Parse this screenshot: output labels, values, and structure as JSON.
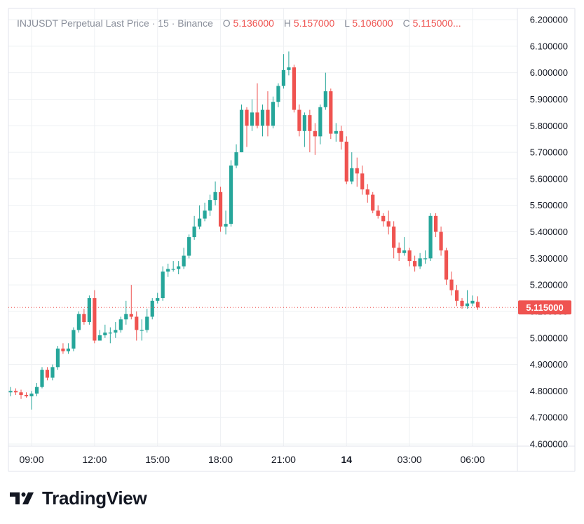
{
  "legend": {
    "title": "INJUSDT Perpetual Last Price · 15 · Binance",
    "o_label": "O",
    "o_value": "5.136000",
    "h_label": "H",
    "h_value": "5.157000",
    "l_label": "L",
    "l_value": "5.106000",
    "c_label": "C",
    "c_value": "5.115000..."
  },
  "last_price_label": "5.115000",
  "brand": {
    "name": "TradingView"
  },
  "colors": {
    "up": "#26a69a",
    "down": "#ef5350",
    "grid": "#eef0f3",
    "text": "#131722",
    "legend_gray": "#8a8f9b"
  },
  "chart_data": {
    "type": "candlestick",
    "title": "INJUSDT Perpetual Last Price · 15 · Binance",
    "ylim": [
      4.6,
      6.2
    ],
    "y_ticks": [
      "6.200000",
      "6.100000",
      "6.000000",
      "5.900000",
      "5.800000",
      "5.700000",
      "5.600000",
      "5.500000",
      "5.400000",
      "5.300000",
      "5.200000",
      "5.100000",
      "5.000000",
      "4.900000",
      "4.800000",
      "4.700000",
      "4.600000"
    ],
    "x_ticks": [
      {
        "label": "09:00",
        "hour": 9
      },
      {
        "label": "12:00",
        "hour": 12
      },
      {
        "label": "15:00",
        "hour": 15
      },
      {
        "label": "18:00",
        "hour": 18
      },
      {
        "label": "21:00",
        "hour": 21
      },
      {
        "label": "14",
        "hour": 24,
        "bold": true
      },
      {
        "label": "03:00",
        "hour": 27
      },
      {
        "label": "06:00",
        "hour": 30
      }
    ],
    "last_price": 5.115,
    "candles": [
      [
        8.0,
        4.795,
        4.8,
        4.815,
        4.78
      ],
      [
        8.25,
        4.8,
        4.795,
        4.81,
        4.785
      ],
      [
        8.5,
        4.795,
        4.785,
        4.805,
        4.77
      ],
      [
        8.75,
        4.785,
        4.78,
        4.795,
        4.775
      ],
      [
        9.0,
        4.78,
        4.79,
        4.8,
        4.73
      ],
      [
        9.25,
        4.79,
        4.815,
        4.83,
        4.78
      ],
      [
        9.5,
        4.815,
        4.88,
        4.89,
        4.81
      ],
      [
        9.75,
        4.88,
        4.85,
        4.89,
        4.84
      ],
      [
        10.0,
        4.85,
        4.89,
        4.9,
        4.84
      ],
      [
        10.25,
        4.89,
        4.96,
        4.97,
        4.88
      ],
      [
        10.5,
        4.96,
        4.95,
        4.98,
        4.94
      ],
      [
        10.75,
        4.95,
        4.96,
        4.98,
        4.94
      ],
      [
        11.0,
        4.96,
        5.03,
        5.04,
        4.95
      ],
      [
        11.25,
        5.03,
        5.09,
        5.1,
        5.02
      ],
      [
        11.5,
        5.09,
        5.06,
        5.11,
        5.05
      ],
      [
        11.75,
        5.06,
        5.15,
        5.16,
        5.05
      ],
      [
        12.0,
        5.15,
        4.99,
        5.18,
        4.98
      ],
      [
        12.25,
        4.99,
        5.01,
        5.03,
        4.99
      ],
      [
        12.5,
        5.01,
        5.02,
        5.05,
        5.0
      ],
      [
        12.75,
        5.02,
        5.02,
        5.04,
        4.98
      ],
      [
        13.0,
        5.02,
        5.03,
        5.06,
        5.0
      ],
      [
        13.25,
        5.03,
        5.07,
        5.08,
        5.02
      ],
      [
        13.5,
        5.07,
        5.09,
        5.14,
        5.05
      ],
      [
        13.75,
        5.09,
        5.08,
        5.2,
        5.07
      ],
      [
        14.0,
        5.08,
        5.03,
        5.1,
        4.99
      ],
      [
        14.25,
        5.03,
        5.03,
        5.07,
        4.99
      ],
      [
        14.5,
        5.03,
        5.08,
        5.11,
        5.02
      ],
      [
        14.75,
        5.08,
        5.14,
        5.15,
        5.07
      ],
      [
        15.0,
        5.14,
        5.15,
        5.17,
        5.13
      ],
      [
        15.25,
        5.15,
        5.25,
        5.27,
        5.14
      ],
      [
        15.5,
        5.25,
        5.26,
        5.28,
        5.23
      ],
      [
        15.75,
        5.26,
        5.26,
        5.29,
        5.25
      ],
      [
        16.0,
        5.26,
        5.27,
        5.29,
        5.24
      ],
      [
        16.25,
        5.27,
        5.31,
        5.34,
        5.26
      ],
      [
        16.5,
        5.31,
        5.38,
        5.39,
        5.3
      ],
      [
        16.75,
        5.38,
        5.42,
        5.46,
        5.37
      ],
      [
        17.0,
        5.42,
        5.45,
        5.5,
        5.41
      ],
      [
        17.25,
        5.45,
        5.48,
        5.51,
        5.44
      ],
      [
        17.5,
        5.48,
        5.52,
        5.54,
        5.46
      ],
      [
        17.75,
        5.52,
        5.55,
        5.59,
        5.5
      ],
      [
        18.0,
        5.55,
        5.42,
        5.57,
        5.4
      ],
      [
        18.25,
        5.42,
        5.43,
        5.48,
        5.39
      ],
      [
        18.5,
        5.43,
        5.65,
        5.67,
        5.42
      ],
      [
        18.75,
        5.65,
        5.7,
        5.73,
        5.64
      ],
      [
        19.0,
        5.7,
        5.86,
        5.88,
        5.7
      ],
      [
        19.25,
        5.86,
        5.8,
        5.87,
        5.72
      ],
      [
        19.5,
        5.8,
        5.85,
        5.9,
        5.78
      ],
      [
        19.75,
        5.85,
        5.8,
        5.96,
        5.79
      ],
      [
        20.0,
        5.8,
        5.86,
        5.88,
        5.76
      ],
      [
        20.25,
        5.86,
        5.8,
        5.93,
        5.76
      ],
      [
        20.5,
        5.8,
        5.89,
        5.91,
        5.79
      ],
      [
        20.75,
        5.89,
        5.95,
        5.96,
        5.87
      ],
      [
        21.0,
        5.95,
        6.01,
        6.07,
        5.94
      ],
      [
        21.25,
        6.01,
        6.02,
        6.08,
        5.99
      ],
      [
        21.5,
        6.02,
        5.86,
        6.03,
        5.85
      ],
      [
        21.75,
        5.86,
        5.78,
        5.88,
        5.76
      ],
      [
        22.0,
        5.78,
        5.84,
        5.85,
        5.72
      ],
      [
        22.25,
        5.84,
        5.78,
        5.86,
        5.7
      ],
      [
        22.5,
        5.78,
        5.76,
        5.81,
        5.69
      ],
      [
        22.75,
        5.76,
        5.87,
        5.88,
        5.73
      ],
      [
        23.0,
        5.87,
        5.93,
        6.0,
        5.86
      ],
      [
        23.25,
        5.93,
        5.77,
        5.94,
        5.75
      ],
      [
        23.5,
        5.77,
        5.78,
        5.81,
        5.74
      ],
      [
        23.75,
        5.78,
        5.74,
        5.8,
        5.71
      ],
      [
        24.0,
        5.74,
        5.59,
        5.76,
        5.58
      ],
      [
        24.25,
        5.59,
        5.64,
        5.7,
        5.58
      ],
      [
        24.5,
        5.64,
        5.62,
        5.68,
        5.57
      ],
      [
        24.75,
        5.62,
        5.56,
        5.65,
        5.54
      ],
      [
        25.0,
        5.56,
        5.54,
        5.58,
        5.51
      ],
      [
        25.25,
        5.54,
        5.48,
        5.55,
        5.47
      ],
      [
        25.5,
        5.48,
        5.46,
        5.5,
        5.45
      ],
      [
        25.75,
        5.46,
        5.44,
        5.47,
        5.42
      ],
      [
        26.0,
        5.44,
        5.42,
        5.48,
        5.39
      ],
      [
        26.25,
        5.42,
        5.34,
        5.44,
        5.3
      ],
      [
        26.5,
        5.34,
        5.32,
        5.36,
        5.29
      ],
      [
        26.75,
        5.32,
        5.33,
        5.38,
        5.31
      ],
      [
        27.0,
        5.33,
        5.29,
        5.34,
        5.27
      ],
      [
        27.25,
        5.29,
        5.27,
        5.31,
        5.25
      ],
      [
        27.5,
        5.27,
        5.3,
        5.32,
        5.26
      ],
      [
        27.75,
        5.3,
        5.3,
        5.33,
        5.28
      ],
      [
        28.0,
        5.3,
        5.46,
        5.47,
        5.29
      ],
      [
        28.25,
        5.46,
        5.4,
        5.47,
        5.38
      ],
      [
        28.5,
        5.4,
        5.33,
        5.42,
        5.31
      ],
      [
        28.75,
        5.33,
        5.22,
        5.34,
        5.2
      ],
      [
        29.0,
        5.22,
        5.18,
        5.25,
        5.16
      ],
      [
        29.25,
        5.18,
        5.14,
        5.2,
        5.12
      ],
      [
        29.5,
        5.14,
        5.12,
        5.15,
        5.11
      ],
      [
        29.75,
        5.12,
        5.13,
        5.18,
        5.11
      ],
      [
        30.0,
        5.13,
        5.14,
        5.16,
        5.12
      ],
      [
        30.25,
        5.136,
        5.115,
        5.157,
        5.106
      ]
    ]
  }
}
